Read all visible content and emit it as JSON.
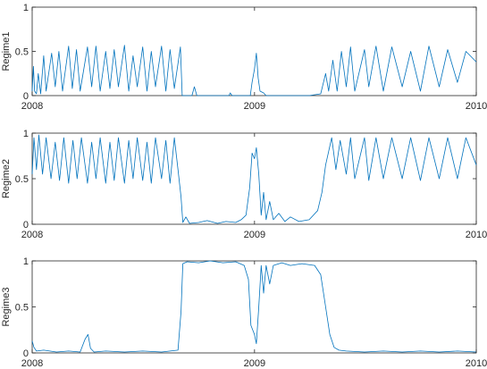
{
  "chart_data": [
    {
      "type": "line",
      "ylabel": "Regime1",
      "xlim": [
        "2008-01-01",
        "2010-01-01"
      ],
      "ylim": [
        0,
        1
      ],
      "xticks": [
        "2008",
        "2009",
        "2010"
      ],
      "yticks": [
        "0",
        "0.5",
        "1"
      ],
      "grid": false,
      "line_color": "#0072BD",
      "description_points": [
        {
          "x": "2008-01-01",
          "y": 0.05
        },
        {
          "x": "2008-01-03",
          "y": 0.33
        },
        {
          "x": "2008-01-05",
          "y": 0.05
        },
        {
          "x": "2008-01-08",
          "y": 0.02
        },
        {
          "x": "2008-01-11",
          "y": 0.25
        },
        {
          "x": "2008-01-15",
          "y": 0.02
        },
        {
          "x": "2008-01-20",
          "y": 0.45
        },
        {
          "x": "2008-01-24",
          "y": 0.05
        },
        {
          "x": "2008-02-02",
          "y": 0.48
        },
        {
          "x": "2008-02-08",
          "y": 0.1
        },
        {
          "x": "2008-02-14",
          "y": 0.5
        },
        {
          "x": "2008-02-20",
          "y": 0.05
        },
        {
          "x": "2008-03-01",
          "y": 0.56
        },
        {
          "x": "2008-03-07",
          "y": 0.08
        },
        {
          "x": "2008-03-14",
          "y": 0.52
        },
        {
          "x": "2008-03-20",
          "y": 0.05
        },
        {
          "x": "2008-04-01",
          "y": 0.55
        },
        {
          "x": "2008-04-08",
          "y": 0.1
        },
        {
          "x": "2008-04-15",
          "y": 0.56
        },
        {
          "x": "2008-04-22",
          "y": 0.05
        },
        {
          "x": "2008-05-01",
          "y": 0.5
        },
        {
          "x": "2008-05-08",
          "y": 0.08
        },
        {
          "x": "2008-05-15",
          "y": 0.52
        },
        {
          "x": "2008-05-22",
          "y": 0.1
        },
        {
          "x": "2008-06-01",
          "y": 0.57
        },
        {
          "x": "2008-06-08",
          "y": 0.05
        },
        {
          "x": "2008-06-15",
          "y": 0.45
        },
        {
          "x": "2008-06-22",
          "y": 0.1
        },
        {
          "x": "2008-07-01",
          "y": 0.55
        },
        {
          "x": "2008-07-08",
          "y": 0.05
        },
        {
          "x": "2008-07-15",
          "y": 0.5
        },
        {
          "x": "2008-07-22",
          "y": 0.1
        },
        {
          "x": "2008-08-01",
          "y": 0.56
        },
        {
          "x": "2008-08-08",
          "y": 0.05
        },
        {
          "x": "2008-08-15",
          "y": 0.52
        },
        {
          "x": "2008-08-22",
          "y": 0.08
        },
        {
          "x": "2008-09-01",
          "y": 0.55
        },
        {
          "x": "2008-09-04",
          "y": 0.0
        },
        {
          "x": "2008-09-20",
          "y": 0.0
        },
        {
          "x": "2008-09-24",
          "y": 0.1
        },
        {
          "x": "2008-09-28",
          "y": 0.0
        },
        {
          "x": "2008-11-20",
          "y": 0.0
        },
        {
          "x": "2008-11-22",
          "y": 0.03
        },
        {
          "x": "2008-11-25",
          "y": 0.0
        },
        {
          "x": "2008-12-25",
          "y": 0.0
        },
        {
          "x": "2008-12-28",
          "y": 0.15
        },
        {
          "x": "2009-01-01",
          "y": 0.3
        },
        {
          "x": "2009-01-04",
          "y": 0.48
        },
        {
          "x": "2009-01-07",
          "y": 0.2
        },
        {
          "x": "2009-01-10",
          "y": 0.05
        },
        {
          "x": "2009-01-16",
          "y": 0.03
        },
        {
          "x": "2009-01-20",
          "y": 0.0
        },
        {
          "x": "2009-04-01",
          "y": 0.0
        },
        {
          "x": "2009-04-20",
          "y": 0.02
        },
        {
          "x": "2009-04-28",
          "y": 0.25
        },
        {
          "x": "2009-05-03",
          "y": 0.05
        },
        {
          "x": "2009-05-10",
          "y": 0.4
        },
        {
          "x": "2009-05-17",
          "y": 0.05
        },
        {
          "x": "2009-05-24",
          "y": 0.5
        },
        {
          "x": "2009-06-01",
          "y": 0.1
        },
        {
          "x": "2009-06-08",
          "y": 0.55
        },
        {
          "x": "2009-06-15",
          "y": 0.05
        },
        {
          "x": "2009-07-01",
          "y": 0.52
        },
        {
          "x": "2009-07-08",
          "y": 0.1
        },
        {
          "x": "2009-07-20",
          "y": 0.56
        },
        {
          "x": "2009-08-01",
          "y": 0.05
        },
        {
          "x": "2009-08-15",
          "y": 0.55
        },
        {
          "x": "2009-09-01",
          "y": 0.1
        },
        {
          "x": "2009-09-15",
          "y": 0.5
        },
        {
          "x": "2009-10-01",
          "y": 0.05
        },
        {
          "x": "2009-10-15",
          "y": 0.56
        },
        {
          "x": "2009-11-01",
          "y": 0.1
        },
        {
          "x": "2009-11-15",
          "y": 0.52
        },
        {
          "x": "2009-12-01",
          "y": 0.15
        },
        {
          "x": "2009-12-15",
          "y": 0.5
        },
        {
          "x": "2010-01-01",
          "y": 0.38
        }
      ]
    },
    {
      "type": "line",
      "ylabel": "Regime2",
      "xlim": [
        "2008-01-01",
        "2010-01-01"
      ],
      "ylim": [
        0,
        1
      ],
      "xticks": [
        "2008",
        "2009",
        "2010"
      ],
      "yticks": [
        "0",
        "0.5",
        "1"
      ],
      "grid": false,
      "line_color": "#0072BD",
      "description_points": [
        {
          "x": "2008-01-01",
          "y": 0.55
        },
        {
          "x": "2008-01-04",
          "y": 0.95
        },
        {
          "x": "2008-01-08",
          "y": 0.6
        },
        {
          "x": "2008-01-12",
          "y": 0.98
        },
        {
          "x": "2008-01-18",
          "y": 0.55
        },
        {
          "x": "2008-01-24",
          "y": 0.95
        },
        {
          "x": "2008-02-01",
          "y": 0.5
        },
        {
          "x": "2008-02-08",
          "y": 0.9
        },
        {
          "x": "2008-02-15",
          "y": 0.48
        },
        {
          "x": "2008-02-22",
          "y": 0.95
        },
        {
          "x": "2008-03-01",
          "y": 0.45
        },
        {
          "x": "2008-03-08",
          "y": 0.92
        },
        {
          "x": "2008-03-15",
          "y": 0.5
        },
        {
          "x": "2008-03-22",
          "y": 0.95
        },
        {
          "x": "2008-04-01",
          "y": 0.45
        },
        {
          "x": "2008-04-08",
          "y": 0.9
        },
        {
          "x": "2008-04-15",
          "y": 0.5
        },
        {
          "x": "2008-04-22",
          "y": 0.95
        },
        {
          "x": "2008-05-01",
          "y": 0.45
        },
        {
          "x": "2008-05-08",
          "y": 0.9
        },
        {
          "x": "2008-05-15",
          "y": 0.48
        },
        {
          "x": "2008-05-22",
          "y": 0.95
        },
        {
          "x": "2008-06-01",
          "y": 0.45
        },
        {
          "x": "2008-06-08",
          "y": 0.92
        },
        {
          "x": "2008-06-15",
          "y": 0.5
        },
        {
          "x": "2008-06-22",
          "y": 0.95
        },
        {
          "x": "2008-07-01",
          "y": 0.48
        },
        {
          "x": "2008-07-08",
          "y": 0.9
        },
        {
          "x": "2008-07-15",
          "y": 0.45
        },
        {
          "x": "2008-07-22",
          "y": 0.95
        },
        {
          "x": "2008-08-01",
          "y": 0.5
        },
        {
          "x": "2008-08-08",
          "y": 0.92
        },
        {
          "x": "2008-08-15",
          "y": 0.45
        },
        {
          "x": "2008-08-22",
          "y": 0.95
        },
        {
          "x": "2008-08-28",
          "y": 0.6
        },
        {
          "x": "2008-09-02",
          "y": 0.3
        },
        {
          "x": "2008-09-05",
          "y": 0.02
        },
        {
          "x": "2008-09-10",
          "y": 0.08
        },
        {
          "x": "2008-09-16",
          "y": 0.01
        },
        {
          "x": "2008-10-01",
          "y": 0.02
        },
        {
          "x": "2008-10-15",
          "y": 0.04
        },
        {
          "x": "2008-11-01",
          "y": 0.01
        },
        {
          "x": "2008-11-15",
          "y": 0.03
        },
        {
          "x": "2008-12-01",
          "y": 0.02
        },
        {
          "x": "2008-12-10",
          "y": 0.05
        },
        {
          "x": "2008-12-18",
          "y": 0.1
        },
        {
          "x": "2008-12-24",
          "y": 0.4
        },
        {
          "x": "2008-12-28",
          "y": 0.78
        },
        {
          "x": "2009-01-01",
          "y": 0.72
        },
        {
          "x": "2009-01-04",
          "y": 0.84
        },
        {
          "x": "2009-01-08",
          "y": 0.55
        },
        {
          "x": "2009-01-12",
          "y": 0.1
        },
        {
          "x": "2009-01-16",
          "y": 0.35
        },
        {
          "x": "2009-01-20",
          "y": 0.05
        },
        {
          "x": "2009-01-26",
          "y": 0.25
        },
        {
          "x": "2009-02-01",
          "y": 0.05
        },
        {
          "x": "2009-02-10",
          "y": 0.12
        },
        {
          "x": "2009-02-20",
          "y": 0.03
        },
        {
          "x": "2009-03-01",
          "y": 0.08
        },
        {
          "x": "2009-03-15",
          "y": 0.03
        },
        {
          "x": "2009-04-01",
          "y": 0.05
        },
        {
          "x": "2009-04-15",
          "y": 0.15
        },
        {
          "x": "2009-04-22",
          "y": 0.35
        },
        {
          "x": "2009-04-28",
          "y": 0.65
        },
        {
          "x": "2009-05-03",
          "y": 0.8
        },
        {
          "x": "2009-05-08",
          "y": 0.95
        },
        {
          "x": "2009-05-15",
          "y": 0.6
        },
        {
          "x": "2009-05-22",
          "y": 0.92
        },
        {
          "x": "2009-06-01",
          "y": 0.55
        },
        {
          "x": "2009-06-08",
          "y": 0.95
        },
        {
          "x": "2009-06-15",
          "y": 0.5
        },
        {
          "x": "2009-07-01",
          "y": 0.95
        },
        {
          "x": "2009-07-08",
          "y": 0.48
        },
        {
          "x": "2009-07-20",
          "y": 0.95
        },
        {
          "x": "2009-08-01",
          "y": 0.5
        },
        {
          "x": "2009-08-15",
          "y": 0.95
        },
        {
          "x": "2009-09-01",
          "y": 0.5
        },
        {
          "x": "2009-09-15",
          "y": 0.95
        },
        {
          "x": "2009-10-01",
          "y": 0.48
        },
        {
          "x": "2009-10-15",
          "y": 0.95
        },
        {
          "x": "2009-11-01",
          "y": 0.5
        },
        {
          "x": "2009-11-15",
          "y": 0.95
        },
        {
          "x": "2009-12-01",
          "y": 0.5
        },
        {
          "x": "2009-12-15",
          "y": 0.95
        },
        {
          "x": "2010-01-01",
          "y": 0.65
        }
      ]
    },
    {
      "type": "line",
      "ylabel": "Regime3",
      "xlim": [
        "2008-01-01",
        "2010-01-01"
      ],
      "ylim": [
        0,
        1
      ],
      "xticks": [
        "2008",
        "2009",
        "2010"
      ],
      "yticks": [
        "0",
        "0.5",
        "1"
      ],
      "grid": false,
      "line_color": "#0072BD",
      "description_points": [
        {
          "x": "2008-01-01",
          "y": 0.13
        },
        {
          "x": "2008-01-04",
          "y": 0.06
        },
        {
          "x": "2008-01-08",
          "y": 0.02
        },
        {
          "x": "2008-01-20",
          "y": 0.03
        },
        {
          "x": "2008-02-10",
          "y": 0.01
        },
        {
          "x": "2008-03-01",
          "y": 0.02
        },
        {
          "x": "2008-03-20",
          "y": 0.01
        },
        {
          "x": "2008-03-28",
          "y": 0.15
        },
        {
          "x": "2008-04-02",
          "y": 0.2
        },
        {
          "x": "2008-04-06",
          "y": 0.05
        },
        {
          "x": "2008-04-12",
          "y": 0.01
        },
        {
          "x": "2008-05-01",
          "y": 0.02
        },
        {
          "x": "2008-06-01",
          "y": 0.01
        },
        {
          "x": "2008-07-01",
          "y": 0.02
        },
        {
          "x": "2008-08-01",
          "y": 0.01
        },
        {
          "x": "2008-08-28",
          "y": 0.03
        },
        {
          "x": "2008-09-02",
          "y": 0.45
        },
        {
          "x": "2008-09-05",
          "y": 0.97
        },
        {
          "x": "2008-09-12",
          "y": 0.99
        },
        {
          "x": "2008-10-01",
          "y": 0.98
        },
        {
          "x": "2008-10-20",
          "y": 1.0
        },
        {
          "x": "2008-11-10",
          "y": 0.98
        },
        {
          "x": "2008-12-01",
          "y": 0.99
        },
        {
          "x": "2008-12-15",
          "y": 0.95
        },
        {
          "x": "2008-12-22",
          "y": 0.8
        },
        {
          "x": "2008-12-26",
          "y": 0.3
        },
        {
          "x": "2009-01-01",
          "y": 0.2
        },
        {
          "x": "2009-01-04",
          "y": 0.1
        },
        {
          "x": "2009-01-08",
          "y": 0.5
        },
        {
          "x": "2009-01-12",
          "y": 0.95
        },
        {
          "x": "2009-01-16",
          "y": 0.65
        },
        {
          "x": "2009-01-20",
          "y": 0.95
        },
        {
          "x": "2009-01-26",
          "y": 0.75
        },
        {
          "x": "2009-02-01",
          "y": 0.95
        },
        {
          "x": "2009-02-15",
          "y": 0.98
        },
        {
          "x": "2009-03-01",
          "y": 0.95
        },
        {
          "x": "2009-03-20",
          "y": 0.97
        },
        {
          "x": "2009-04-10",
          "y": 0.95
        },
        {
          "x": "2009-04-20",
          "y": 0.85
        },
        {
          "x": "2009-04-28",
          "y": 0.5
        },
        {
          "x": "2009-05-05",
          "y": 0.2
        },
        {
          "x": "2009-05-12",
          "y": 0.06
        },
        {
          "x": "2009-05-20",
          "y": 0.03
        },
        {
          "x": "2009-06-01",
          "y": 0.02
        },
        {
          "x": "2009-07-01",
          "y": 0.01
        },
        {
          "x": "2009-08-01",
          "y": 0.02
        },
        {
          "x": "2009-09-01",
          "y": 0.01
        },
        {
          "x": "2009-10-01",
          "y": 0.02
        },
        {
          "x": "2009-11-01",
          "y": 0.01
        },
        {
          "x": "2009-12-01",
          "y": 0.02
        },
        {
          "x": "2010-01-01",
          "y": 0.01
        }
      ]
    }
  ]
}
